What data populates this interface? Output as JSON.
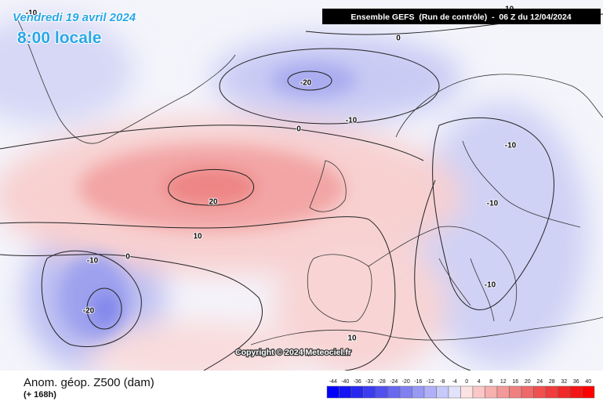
{
  "header": {
    "date": "Vendredi 19 avril 2024",
    "time": "8:00 locale",
    "model": "Ensemble GEFS  (Run de contrôle)  -  06 Z du 12/04/2024"
  },
  "map": {
    "copyright": "Copyright © 2024 Meteociel.fr",
    "contour_labels": [
      -10,
      0,
      -20,
      -10,
      -10,
      0,
      -10,
      20,
      -10,
      10,
      0,
      -10,
      -20,
      -10,
      10
    ]
  },
  "footer": {
    "title": "Anom. géop. Z500 (dam)",
    "lead": "(+ 168h)"
  },
  "legend": {
    "ticks": [
      -44,
      -40,
      -36,
      -32,
      -28,
      -24,
      -20,
      -16,
      -12,
      -8,
      -4,
      0,
      4,
      8,
      12,
      16,
      20,
      24,
      28,
      32,
      36,
      40
    ],
    "colors": [
      "#0000ff",
      "#1414f5",
      "#2828f0",
      "#3c3cf0",
      "#5050f0",
      "#6868f0",
      "#8080f0",
      "#9898f5",
      "#b0b0f8",
      "#c8c8fa",
      "#e2e2fc",
      "#fce2e2",
      "#fac8c8",
      "#f8b0b0",
      "#f59898",
      "#f08080",
      "#f06868",
      "#f05050",
      "#f03c3c",
      "#f02828",
      "#f51414",
      "#ff0000"
    ]
  }
}
